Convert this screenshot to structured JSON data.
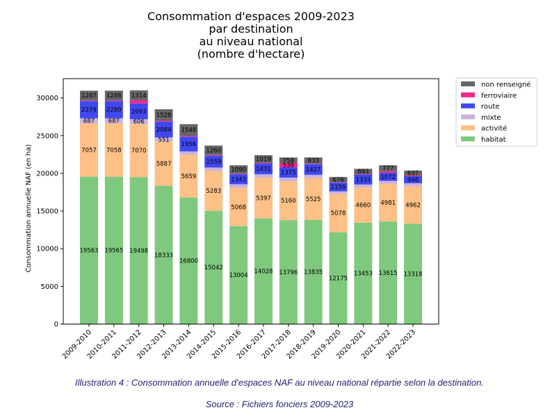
{
  "chart_data": {
    "type": "bar",
    "stacked": true,
    "title": [
      "Consommation d'espaces 2009-2023",
      "par destination",
      "au niveau national",
      "(nombre d'hectare)"
    ],
    "xlabel": "",
    "ylabel": "Consommation annuelle NAF (en ha)",
    "ylim": [
      0,
      32500
    ],
    "yticks": [
      0,
      5000,
      10000,
      15000,
      20000,
      25000,
      30000
    ],
    "grid": false,
    "legend_position": "outside-top-right",
    "categories": [
      "2009-2010",
      "2010-2011",
      "2011-2012",
      "2012-2013",
      "2013-2014",
      "2014-2015",
      "2015-2016",
      "2016-2017",
      "2017-2018",
      "2018-2019",
      "2019-2020",
      "2020-2021",
      "2021-2022",
      "2022-2023"
    ],
    "series": [
      {
        "name": "habitat",
        "color": "#7fc97f",
        "values": [
          19563,
          19565,
          19498,
          18333,
          16800,
          15042,
          13004,
          14028,
          13796,
          13835,
          12175,
          13453,
          13615,
          13318
        ]
      },
      {
        "name": "activité",
        "color": "#fdc086",
        "values": [
          7057,
          7058,
          7070,
          5887,
          5659,
          5283,
          5068,
          5397,
          5160,
          5525,
          5078,
          4660,
          4981,
          4962
        ]
      },
      {
        "name": "mixte",
        "color": "#cdb4db",
        "values": [
          687,
          687,
          606,
          551,
          450,
          450,
          480,
          450,
          470,
          430,
          360,
          400,
          400,
          400
        ]
      },
      {
        "name": "route",
        "color": "#3f48f0",
        "values": [
          2279,
          2280,
          2093,
          2084,
          1956,
          1559,
          1343,
          1431,
          1375,
          1427,
          1159,
          1333,
          1072,
          946
        ]
      },
      {
        "name": "ferroviaire",
        "color": "#f0288c",
        "values": [
          90,
          90,
          430,
          120,
          110,
          90,
          80,
          80,
          539,
          60,
          60,
          60,
          220,
          100
        ]
      },
      {
        "name": "non renseigné",
        "color": "#666666",
        "values": [
          1287,
          1286,
          1314,
          1528,
          1548,
          1260,
          1090,
          1019,
          758,
          833,
          676,
          693,
          777,
          637
        ]
      }
    ],
    "label_threshold": 500,
    "legend_order": [
      "non renseigné",
      "ferroviaire",
      "route",
      "mixte",
      "activité",
      "habitat"
    ]
  },
  "caption": {
    "illustration": "Illustration 4 : Consommation annuelle d’espaces NAF au niveau national répartie selon la destination.",
    "source": "Source : Fichiers fonciers 2009-2023"
  }
}
